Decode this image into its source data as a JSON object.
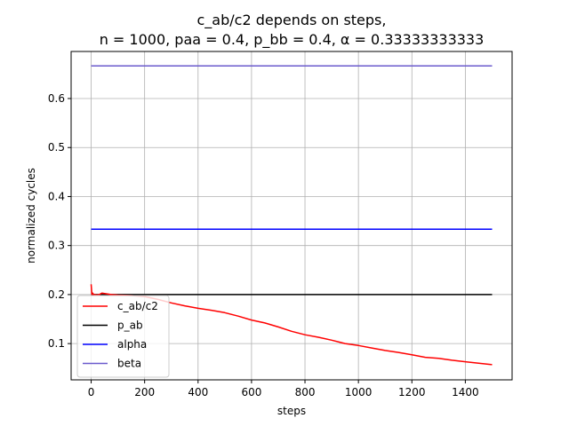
{
  "chart_data": {
    "type": "line",
    "title_line1": "c_ab/c2 depends on steps,",
    "title_line2": "n = 1000, paa = 0.4, p_bb = 0.4, α = 0.33333333333",
    "xlabel": "steps",
    "ylabel": "normalized cycles",
    "xlim": [
      -75,
      1575
    ],
    "ylim": [
      0.026,
      0.696
    ],
    "xticks": [
      0,
      200,
      400,
      600,
      800,
      1000,
      1200,
      1400
    ],
    "yticks": [
      0.1,
      0.2,
      0.3,
      0.4,
      0.5,
      0.6
    ],
    "ytick_labels": [
      "0.1",
      "0.2",
      "0.3",
      "0.4",
      "0.5",
      "0.6"
    ],
    "grid": true,
    "legend_position": "lower-left",
    "series": [
      {
        "name": "c_ab/c2",
        "color": "#ff0000",
        "x": [
          0,
          3,
          6,
          10,
          15,
          20,
          30,
          40,
          50,
          75,
          100,
          150,
          200,
          250,
          300,
          350,
          400,
          450,
          500,
          550,
          600,
          650,
          700,
          750,
          800,
          850,
          900,
          950,
          1000,
          1050,
          1100,
          1150,
          1200,
          1250,
          1300,
          1350,
          1400,
          1450,
          1500
        ],
        "y": [
          0.221,
          0.2,
          0.203,
          0.199,
          0.2,
          0.199,
          0.2,
          0.203,
          0.202,
          0.2,
          0.199,
          0.198,
          0.196,
          0.19,
          0.183,
          0.177,
          0.172,
          0.168,
          0.163,
          0.156,
          0.148,
          0.142,
          0.134,
          0.125,
          0.118,
          0.113,
          0.107,
          0.1,
          0.096,
          0.091,
          0.086,
          0.082,
          0.077,
          0.072,
          0.07,
          0.066,
          0.063,
          0.06,
          0.057
        ]
      },
      {
        "name": "p_ab",
        "color": "#000000",
        "x": [
          0,
          1500
        ],
        "y": [
          0.2,
          0.2
        ]
      },
      {
        "name": "alpha",
        "color": "#0000ff",
        "x": [
          0,
          1500
        ],
        "y": [
          0.3333,
          0.3333
        ]
      },
      {
        "name": "beta",
        "color": "#6a5acd",
        "x": [
          0,
          1500
        ],
        "y": [
          0.6667,
          0.6667
        ]
      }
    ]
  }
}
